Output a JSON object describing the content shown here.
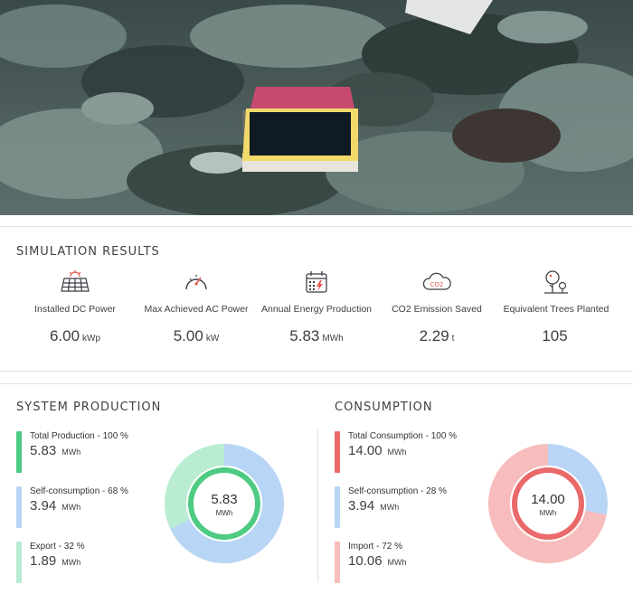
{
  "simulation": {
    "title": "SIMULATION RESULTS",
    "kpis": [
      {
        "icon": "solar-panel-icon",
        "label": "Installed DC Power",
        "value": "6.00",
        "unit": "kWp"
      },
      {
        "icon": "speedometer-icon",
        "label": "Max Achieved AC Power",
        "value": "5.00",
        "unit": "kW"
      },
      {
        "icon": "calendar-energy-icon",
        "label": "Annual Energy Production",
        "value": "5.83",
        "unit": "MWh"
      },
      {
        "icon": "co2-cloud-icon",
        "label": "CO2 Emission Saved",
        "value": "2.29",
        "unit": "t"
      },
      {
        "icon": "trees-icon",
        "label": "Equivalent Trees Planted",
        "value": "105",
        "unit": ""
      }
    ],
    "co2_badge": "CO2"
  },
  "production": {
    "title": "SYSTEM PRODUCTION",
    "items": [
      {
        "label": "Total Production - 100 %",
        "value": "5.83",
        "unit": "MWh",
        "color": "#4ecb82"
      },
      {
        "label": "Self-consumption - 68 %",
        "value": "3.94",
        "unit": "MWh",
        "color": "#b9d5f5"
      },
      {
        "label": "Export - 32 %",
        "value": "1.89",
        "unit": "MWh",
        "color": "#b9ecd2"
      }
    ],
    "donut": {
      "center_value": "5.83",
      "center_unit": "MWh",
      "ring_color": "#4ecb82",
      "segments": [
        {
          "name": "Self-consumption",
          "percent": 68,
          "color": "#b9d5f5"
        },
        {
          "name": "Export",
          "percent": 32,
          "color": "#b9ecd2"
        }
      ]
    }
  },
  "consumption": {
    "title": "CONSUMPTION",
    "items": [
      {
        "label": "Total Consumption - 100 %",
        "value": "14.00",
        "unit": "MWh",
        "color": "#ea6a6a"
      },
      {
        "label": "Self-consumption - 28 %",
        "value": "3.94",
        "unit": "MWh",
        "color": "#b9d5f5"
      },
      {
        "label": "Import - 72 %",
        "value": "10.06",
        "unit": "MWh",
        "color": "#f7bcbc"
      }
    ],
    "donut": {
      "center_value": "14.00",
      "center_unit": "MWh",
      "ring_color": "#ea6a6a",
      "segments": [
        {
          "name": "Self-consumption",
          "percent": 28,
          "color": "#b9d5f5"
        },
        {
          "name": "Import",
          "percent": 72,
          "color": "#f7bcbc"
        }
      ]
    }
  }
}
